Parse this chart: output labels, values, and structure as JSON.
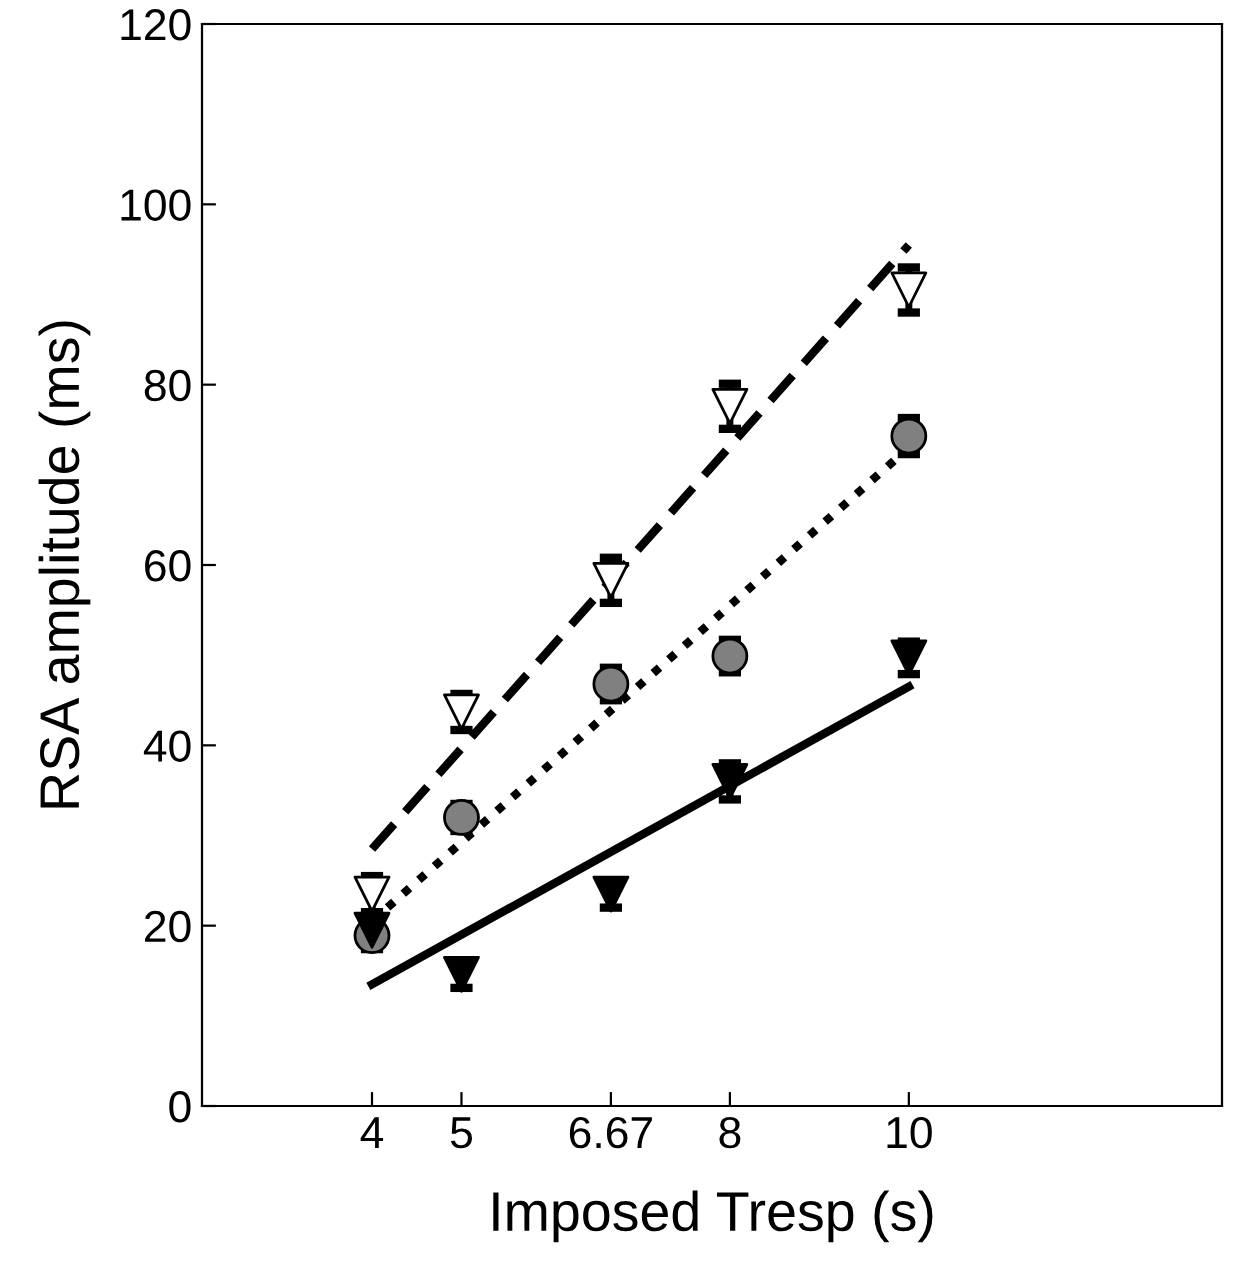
{
  "chart_data": {
    "type": "scatter",
    "xlabel": "Imposed Tresp (s)",
    "ylabel": "RSA amplitude (ms)",
    "xlim": [
      2.1,
      13.5
    ],
    "ylim": [
      0,
      120
    ],
    "xticks": [
      4,
      5,
      6.67,
      8,
      10
    ],
    "yticks": [
      0,
      20,
      40,
      60,
      80,
      100,
      120
    ],
    "grid": false,
    "legend": false,
    "series": [
      {
        "type": "line",
        "color": "#000000",
        "line_style": "dashed",
        "marker": "none",
        "x": [
          4,
          10
        ],
        "values": [
          28.5,
          95.5
        ]
      },
      {
        "type": "line",
        "color": "#000000",
        "line_style": "dotted",
        "marker": "none",
        "x": [
          4,
          10
        ],
        "values": [
          20.5,
          73
        ]
      },
      {
        "type": "line",
        "color": "#000000",
        "line_style": "solid",
        "marker": "none",
        "x": [
          4,
          10
        ],
        "values": [
          13.5,
          46.5
        ]
      },
      {
        "color": "#ffffff",
        "marker": "triangle",
        "x": [
          4,
          5,
          6.67,
          8,
          10
        ],
        "values": [
          23.5,
          43.7,
          58.3,
          77.6,
          90.5
        ],
        "errors": [
          2,
          2,
          2.5,
          2.5,
          2.5
        ]
      },
      {
        "color": "#808080",
        "marker": "circle",
        "x": [
          4,
          5,
          6.67,
          8,
          10
        ],
        "values": [
          18.9,
          32,
          46.8,
          49.9,
          74.3
        ],
        "errors": [
          1.5,
          1.5,
          1.8,
          1.8,
          2
        ]
      },
      {
        "color": "#000000",
        "marker": "triangle",
        "x": [
          4,
          5,
          6.67,
          8,
          10
        ],
        "values": [
          19.5,
          14.6,
          23.5,
          36,
          49.7
        ],
        "errors": [
          1.5,
          1.5,
          1.5,
          2,
          1.8
        ]
      }
    ]
  }
}
